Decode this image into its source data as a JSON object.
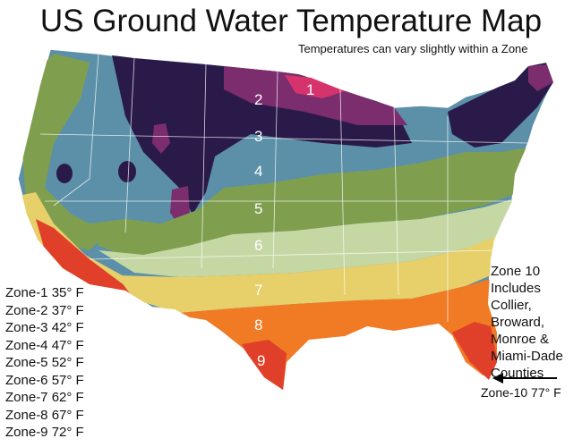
{
  "title": "US Ground Water Temperature Map",
  "subtitle": "Temperatures can vary slightly within a Zone",
  "zone_numbers": [
    "1",
    "2",
    "3",
    "4",
    "5",
    "6",
    "7",
    "8",
    "9"
  ],
  "legend": [
    "Zone-1 35° F",
    "Zone-2 37° F",
    "Zone-3 42° F",
    "Zone-4 47° F",
    "Zone-5 52° F",
    "Zone-6 57° F",
    "Zone-7 62° F",
    "Zone-8 67° F",
    "Zone-9 72° F"
  ],
  "zone10_note": [
    "Zone 10",
    "Includes",
    "Collier,",
    "Broward,",
    "Monroe &",
    "Miami-Dade",
    "Counties"
  ],
  "zone10_label": "Zone-10 77° F",
  "colors": {
    "zone1": "#d6336c",
    "zone2": "#7b2d6e",
    "zone3": "#2a1a4a",
    "zone4": "#5b90a8",
    "zone5": "#7f9f4f",
    "zone6": "#c5d8a4",
    "zone7": "#e7cf6a",
    "zone8": "#f17a25",
    "zone9": "#e0402a"
  }
}
